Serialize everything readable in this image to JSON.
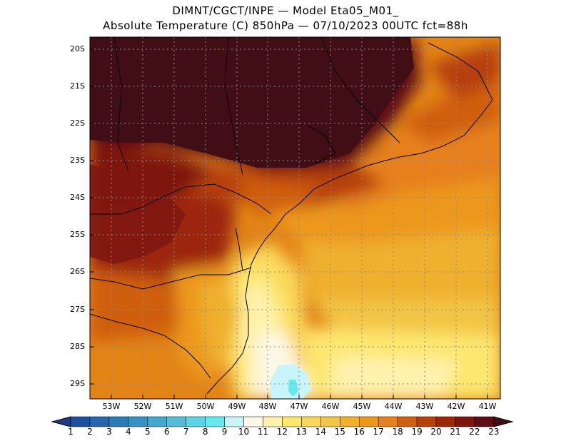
{
  "header": {
    "line1": "DIMNT/CGCT/INPE —  Model Eta05_M01_",
    "line2": "Absolute Temperature (C) 850hPa —  07/10/2023 00UTC fct=88h"
  },
  "axes": {
    "lat_labels": [
      "20S",
      "21S",
      "22S",
      "23S",
      "24S",
      "25S",
      "26S",
      "27S",
      "28S",
      "29S"
    ],
    "lon_labels": [
      "53W",
      "52W",
      "51W",
      "50W",
      "49W",
      "48W",
      "47W",
      "46W",
      "45W",
      "44W",
      "43W",
      "42W",
      "41W"
    ]
  },
  "colorbar": {
    "labels": [
      "1",
      "2",
      "3",
      "4",
      "5",
      "6",
      "7",
      "8",
      "9",
      "10",
      "11",
      "12",
      "13",
      "14",
      "15",
      "16",
      "17",
      "18",
      "19",
      "20",
      "21",
      "22",
      "23"
    ],
    "colors": [
      "#1d3a8c",
      "#21509e",
      "#2766ab",
      "#2d7bb6",
      "#3891c1",
      "#46a7cd",
      "#55bdd8",
      "#5bd3e3",
      "#63e9ef",
      "#c8f4fa",
      "#fdf7e5",
      "#fff2ad",
      "#fde76f",
      "#fad75a",
      "#f2c545",
      "#efb02e",
      "#ec981b",
      "#e6801a",
      "#d05f0f",
      "#b64109",
      "#9c2808",
      "#7e1610",
      "#5e0d12",
      "#420e16"
    ]
  }
}
